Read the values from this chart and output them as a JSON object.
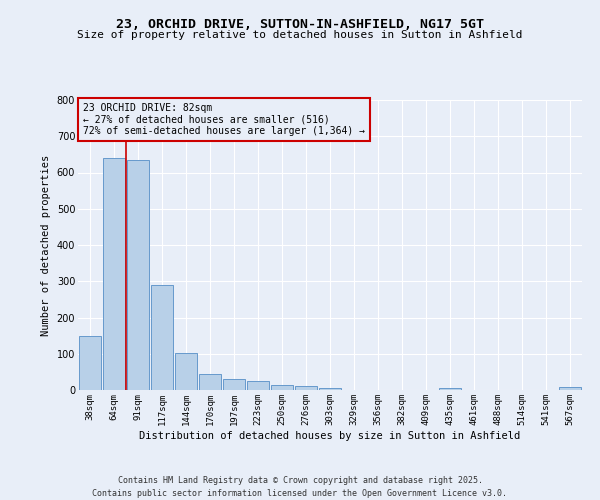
{
  "title_line1": "23, ORCHID DRIVE, SUTTON-IN-ASHFIELD, NG17 5GT",
  "title_line2": "Size of property relative to detached houses in Sutton in Ashfield",
  "xlabel": "Distribution of detached houses by size in Sutton in Ashfield",
  "ylabel": "Number of detached properties",
  "categories": [
    "38sqm",
    "64sqm",
    "91sqm",
    "117sqm",
    "144sqm",
    "170sqm",
    "197sqm",
    "223sqm",
    "250sqm",
    "276sqm",
    "303sqm",
    "329sqm",
    "356sqm",
    "382sqm",
    "409sqm",
    "435sqm",
    "461sqm",
    "488sqm",
    "514sqm",
    "541sqm",
    "567sqm"
  ],
  "values": [
    150,
    640,
    635,
    290,
    103,
    45,
    30,
    25,
    13,
    12,
    6,
    0,
    0,
    0,
    0,
    5,
    0,
    0,
    0,
    0,
    7
  ],
  "bar_color": "#b8d0e8",
  "bar_edge_color": "#6699cc",
  "vline_color": "#cc0000",
  "annotation_text": "23 ORCHID DRIVE: 82sqm\n← 27% of detached houses are smaller (516)\n72% of semi-detached houses are larger (1,364) →",
  "annotation_box_color": "#cc0000",
  "ylim": [
    0,
    800
  ],
  "yticks": [
    0,
    100,
    200,
    300,
    400,
    500,
    600,
    700,
    800
  ],
  "background_color": "#e8eef8",
  "grid_color": "#ffffff",
  "footer_line1": "Contains HM Land Registry data © Crown copyright and database right 2025.",
  "footer_line2": "Contains public sector information licensed under the Open Government Licence v3.0."
}
